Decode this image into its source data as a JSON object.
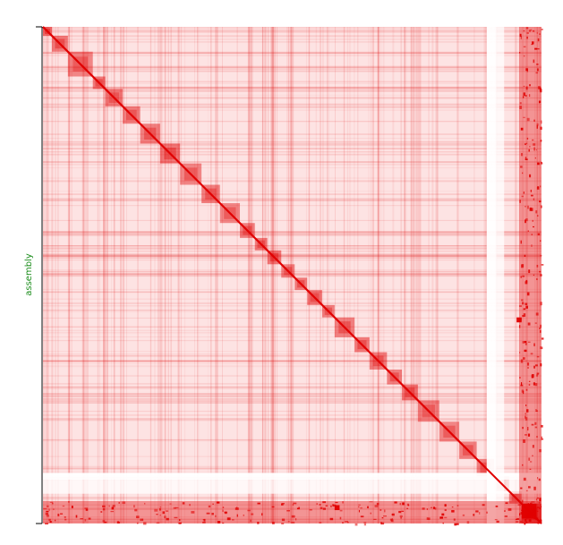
{
  "chart_data": {
    "type": "heatmap",
    "title": "",
    "xlabel": "",
    "ylabel": "assembly",
    "colors": {
      "background": "#fde3e3",
      "low": "#ffffff",
      "high": "#e00000",
      "axis_label": "#1a8c1a",
      "axis_line": "#000000"
    },
    "diagonal_blocks": [
      {
        "start": 0.0,
        "end": 0.018,
        "intensity": 0.95
      },
      {
        "start": 0.018,
        "end": 0.05,
        "intensity": 0.85
      },
      {
        "start": 0.05,
        "end": 0.1,
        "intensity": 0.75
      },
      {
        "start": 0.1,
        "end": 0.125,
        "intensity": 0.85
      },
      {
        "start": 0.125,
        "end": 0.16,
        "intensity": 0.8
      },
      {
        "start": 0.16,
        "end": 0.195,
        "intensity": 0.8
      },
      {
        "start": 0.195,
        "end": 0.235,
        "intensity": 0.8
      },
      {
        "start": 0.235,
        "end": 0.275,
        "intensity": 0.85
      },
      {
        "start": 0.275,
        "end": 0.318,
        "intensity": 0.75
      },
      {
        "start": 0.318,
        "end": 0.355,
        "intensity": 0.8
      },
      {
        "start": 0.355,
        "end": 0.395,
        "intensity": 0.75
      },
      {
        "start": 0.395,
        "end": 0.425,
        "intensity": 0.8
      },
      {
        "start": 0.425,
        "end": 0.45,
        "intensity": 0.85
      },
      {
        "start": 0.45,
        "end": 0.478,
        "intensity": 0.85
      },
      {
        "start": 0.478,
        "end": 0.505,
        "intensity": 0.75
      },
      {
        "start": 0.505,
        "end": 0.53,
        "intensity": 0.85
      },
      {
        "start": 0.53,
        "end": 0.56,
        "intensity": 0.85
      },
      {
        "start": 0.56,
        "end": 0.585,
        "intensity": 0.8
      },
      {
        "start": 0.585,
        "end": 0.625,
        "intensity": 0.8
      },
      {
        "start": 0.625,
        "end": 0.655,
        "intensity": 0.85
      },
      {
        "start": 0.655,
        "end": 0.69,
        "intensity": 0.8
      },
      {
        "start": 0.69,
        "end": 0.72,
        "intensity": 0.8
      },
      {
        "start": 0.72,
        "end": 0.752,
        "intensity": 0.85
      },
      {
        "start": 0.752,
        "end": 0.795,
        "intensity": 0.75
      },
      {
        "start": 0.795,
        "end": 0.835,
        "intensity": 0.75
      },
      {
        "start": 0.835,
        "end": 0.87,
        "intensity": 0.8
      },
      {
        "start": 0.87,
        "end": 0.905,
        "intensity": 0.8
      },
      {
        "start": 0.905,
        "end": 0.935,
        "intensity": 0.8
      },
      {
        "start": 0.935,
        "end": 0.96,
        "intensity": 0.85
      },
      {
        "start": 0.96,
        "end": 1.0,
        "intensity": 0.9
      }
    ],
    "bands": [
      {
        "orientation": "vertical",
        "start": 0.89,
        "end": 0.91,
        "intensity": 0.0
      },
      {
        "orientation": "vertical",
        "start": 0.91,
        "end": 0.925,
        "intensity": 0.05
      },
      {
        "orientation": "horizontal",
        "start": 0.898,
        "end": 0.912,
        "intensity": 0.0
      },
      {
        "orientation": "horizontal",
        "start": 0.912,
        "end": 0.94,
        "intensity": 0.05
      },
      {
        "orientation": "vertical",
        "start": 0.955,
        "end": 1.0,
        "intensity": 0.35
      },
      {
        "orientation": "horizontal",
        "start": 0.955,
        "end": 1.0,
        "intensity": 0.35
      }
    ],
    "hotspots": [
      {
        "row": 0.59,
        "col": 0.955,
        "size": 0.01
      },
      {
        "row": 0.968,
        "col": 0.59,
        "size": 0.01
      },
      {
        "row": 0.975,
        "col": 0.975,
        "size": 0.03
      }
    ],
    "grid": false,
    "legend": "none"
  }
}
